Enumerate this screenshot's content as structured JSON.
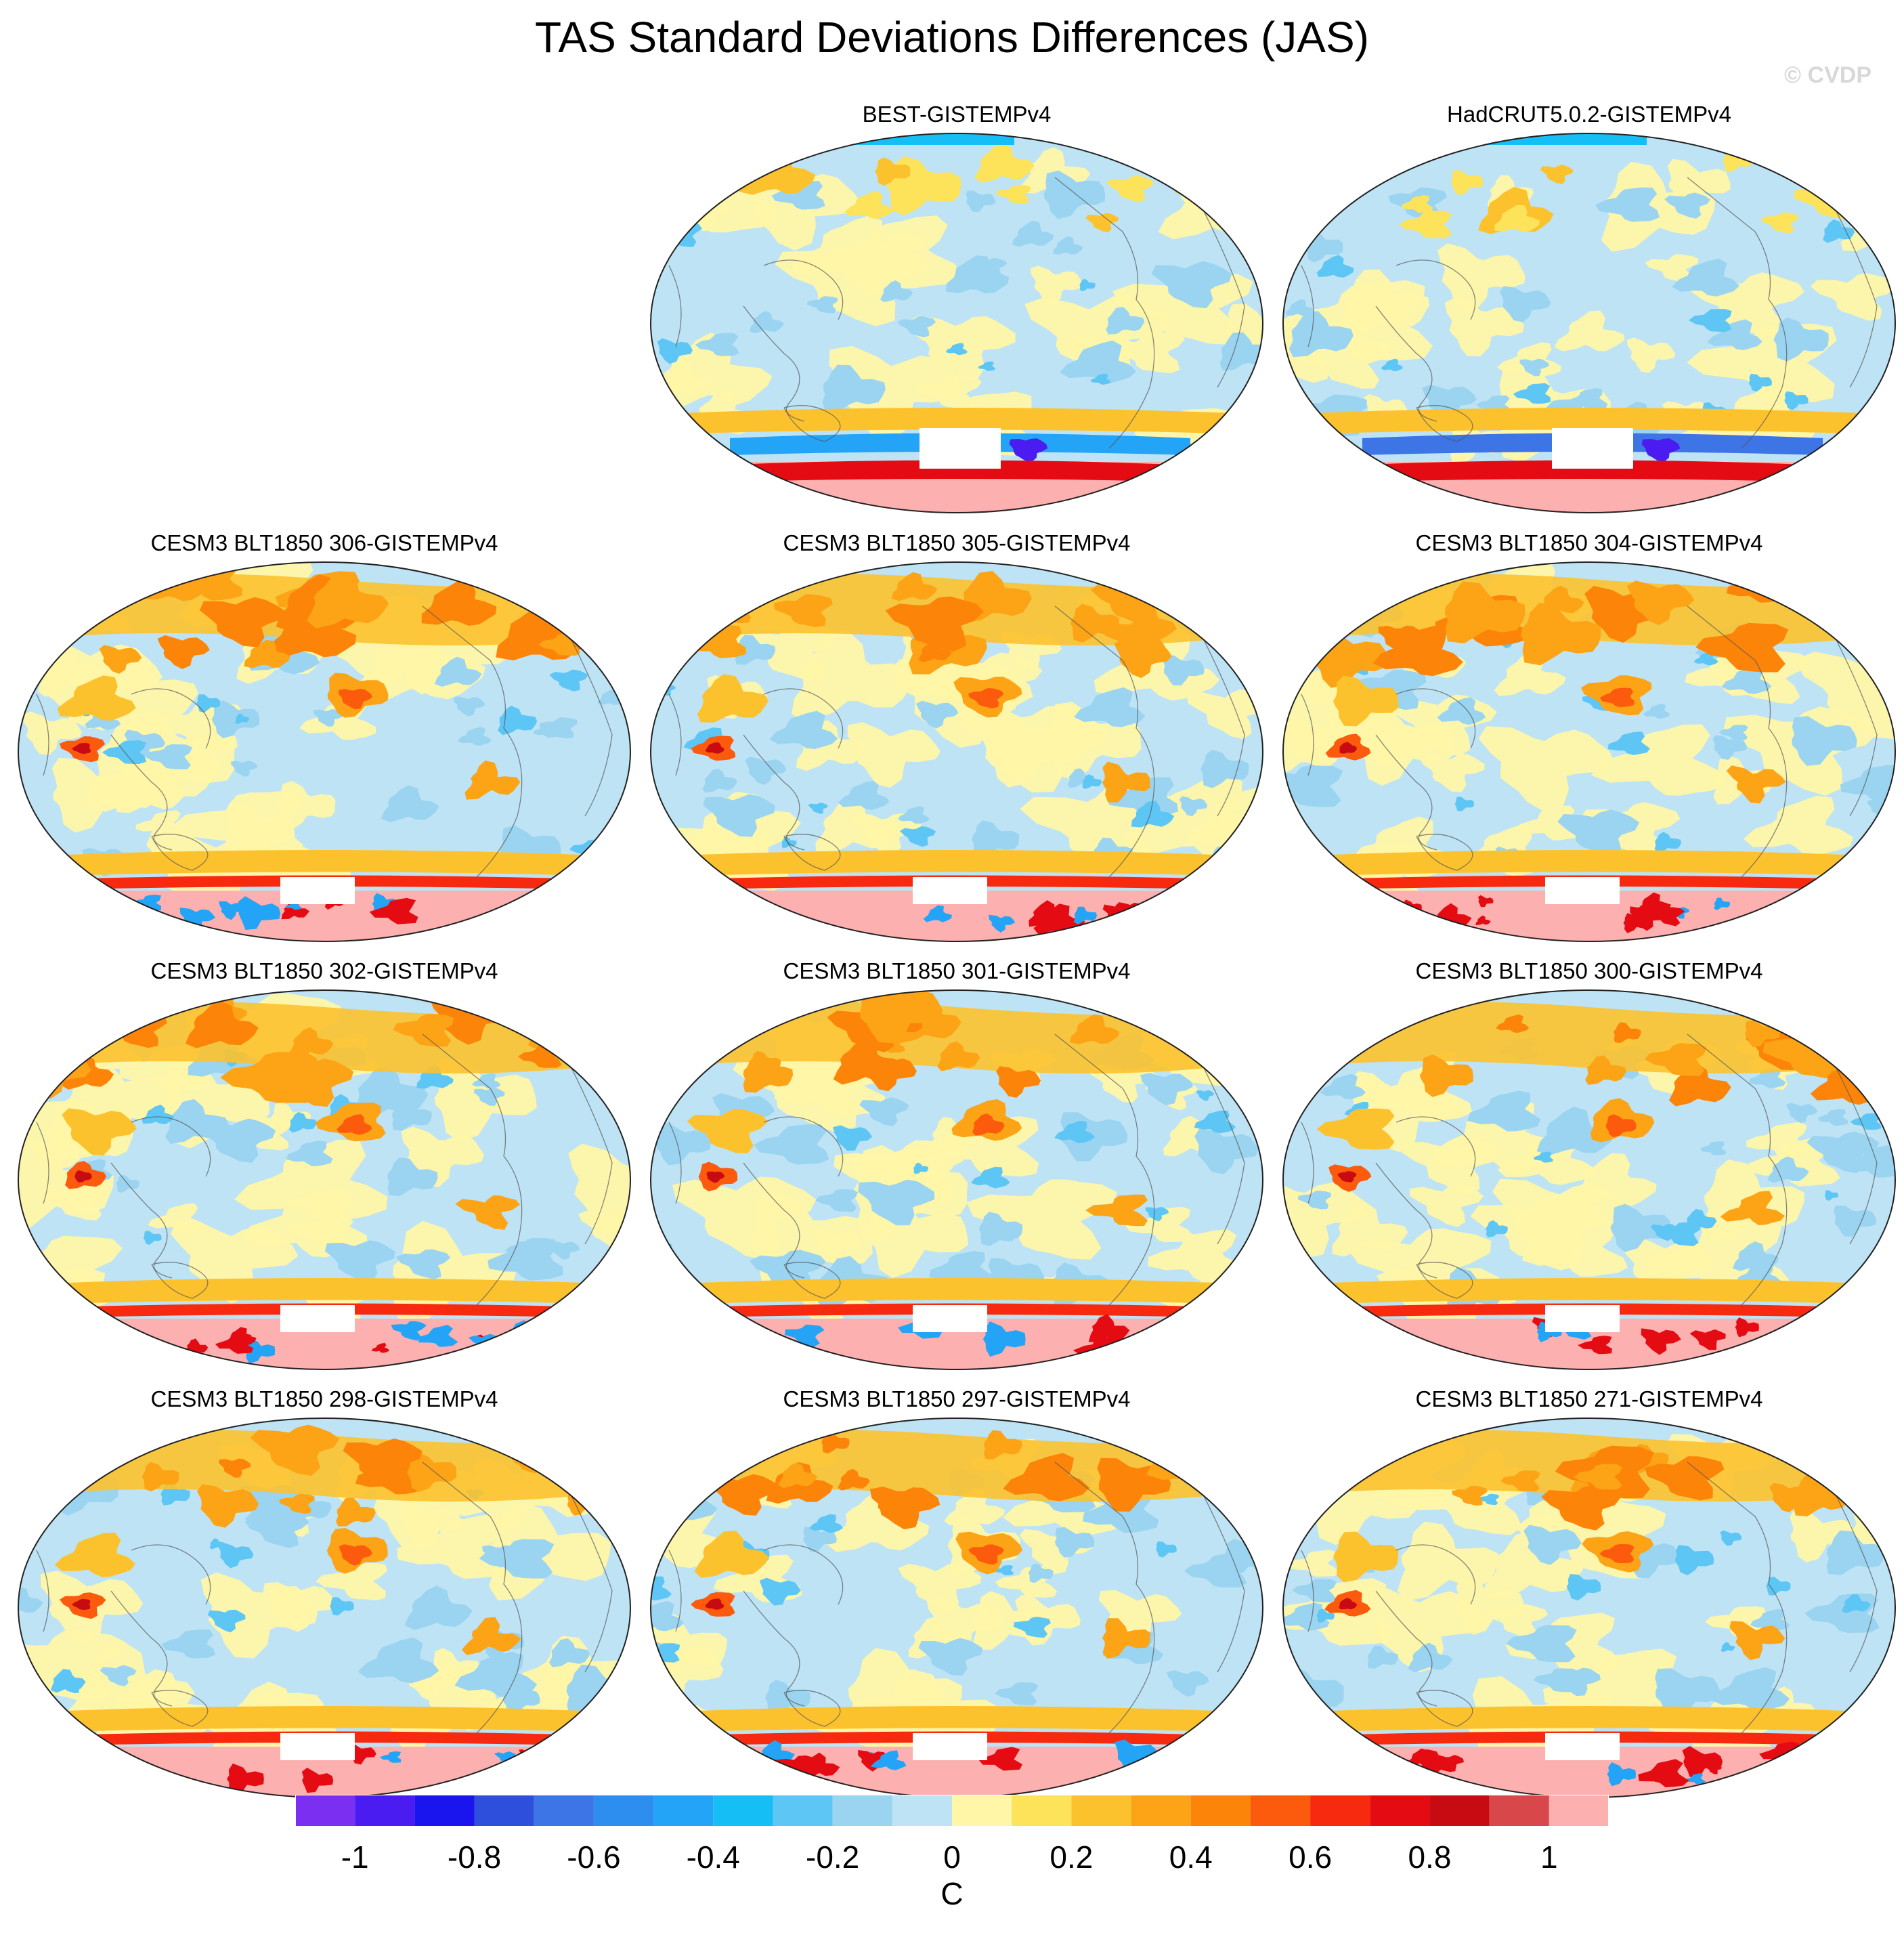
{
  "figure": {
    "title": "TAS Standard Deviations Differences (JAS)",
    "watermark": "© CVDP"
  },
  "panels": [
    {
      "id": "p1",
      "title": "BEST-GISTEMPv4",
      "style": "obs"
    },
    {
      "id": "p2",
      "title": "HadCRUT5.0.2-GISTEMPv4",
      "style": "obs"
    },
    {
      "id": "p3",
      "title": "CESM3 BLT1850 306-GISTEMPv4",
      "style": "model"
    },
    {
      "id": "p4",
      "title": "CESM3 BLT1850 305-GISTEMPv4",
      "style": "model"
    },
    {
      "id": "p5",
      "title": "CESM3 BLT1850 304-GISTEMPv4",
      "style": "model"
    },
    {
      "id": "p6",
      "title": "CESM3 BLT1850 302-GISTEMPv4",
      "style": "model"
    },
    {
      "id": "p7",
      "title": "CESM3 BLT1850 301-GISTEMPv4",
      "style": "model"
    },
    {
      "id": "p8",
      "title": "CESM3 BLT1850 300-GISTEMPv4",
      "style": "model"
    },
    {
      "id": "p9",
      "title": "CESM3 BLT1850 298-GISTEMPv4",
      "style": "model"
    },
    {
      "id": "p10",
      "title": "CESM3 BLT1850 297-GISTEMPv4",
      "style": "model"
    },
    {
      "id": "p11",
      "title": "CESM3 BLT1850 271-GISTEMPv4",
      "style": "model"
    }
  ],
  "colorbar": {
    "unit": "C",
    "colors": [
      "#7b2ff0",
      "#4a1cf2",
      "#1a14ee",
      "#2e4fdc",
      "#3d74e6",
      "#2e8ef0",
      "#23a4f6",
      "#15bff5",
      "#5ec6f4",
      "#9ad4f0",
      "#bde3f5",
      "#fff6a8",
      "#fde35a",
      "#fcc22e",
      "#fca316",
      "#fc8408",
      "#fc5a0c",
      "#f72a10",
      "#e40b12",
      "#c80a12",
      "#d8484a",
      "#fcb0b0"
    ],
    "ticks": [
      {
        "value": -1.0,
        "label": "-1"
      },
      {
        "value": -0.8,
        "label": "-0.8"
      },
      {
        "value": -0.6,
        "label": "-0.6"
      },
      {
        "value": -0.4,
        "label": "-0.4"
      },
      {
        "value": -0.2,
        "label": "-0.2"
      },
      {
        "value": 0.0,
        "label": "0"
      },
      {
        "value": 0.2,
        "label": "0.2"
      },
      {
        "value": 0.4,
        "label": "0.4"
      },
      {
        "value": 0.6,
        "label": "0.6"
      },
      {
        "value": 0.8,
        "label": "0.8"
      },
      {
        "value": 1.0,
        "label": "1"
      }
    ],
    "range": [
      -1.1,
      1.1
    ]
  }
}
